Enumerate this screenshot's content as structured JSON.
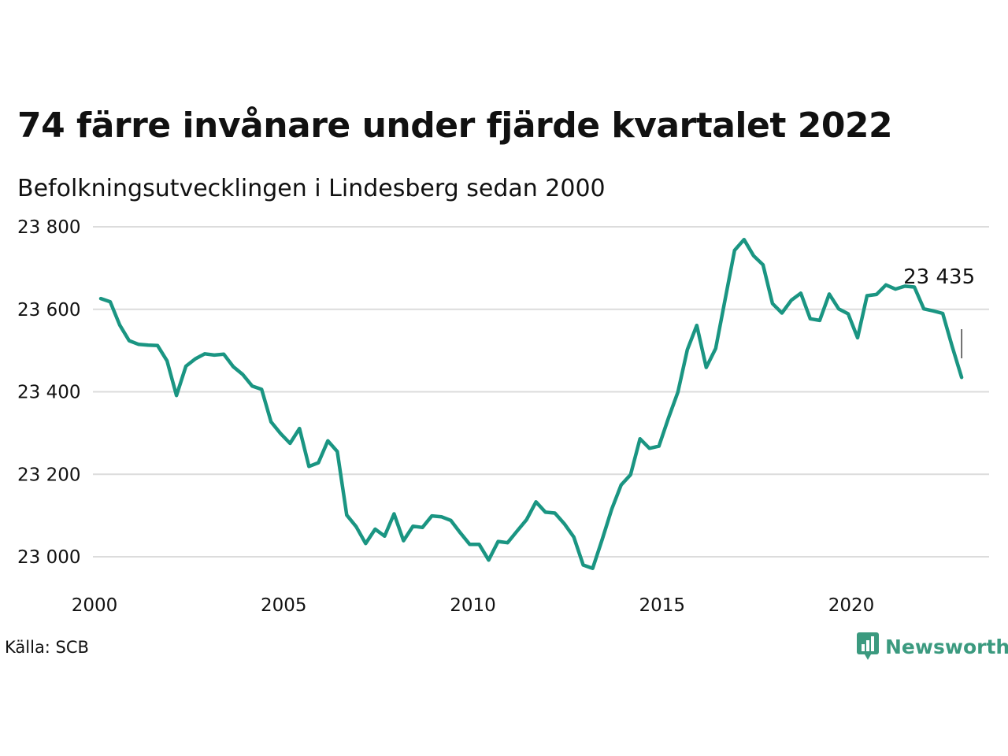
{
  "title": "74 färre invånare under fjärde kvartalet 2022",
  "subtitle": "Befolkningsutvecklingen i Lindesberg sedan 2000",
  "source": "Källa: SCB",
  "brand": {
    "name": "Newsworthy",
    "color": "#3b9a7f",
    "icon": "bar-chart-speech-bubble-icon"
  },
  "chart_data": {
    "type": "line",
    "title": "74 färre invånare under fjärde kvartalet 2022",
    "subtitle": "Befolkningsutvecklingen i Lindesberg sedan 2000",
    "xlabel": "",
    "ylabel": "",
    "xlim": [
      2000,
      2022.75
    ],
    "ylim": [
      22930,
      23820
    ],
    "y_ticks": [
      23000,
      23200,
      23400,
      23600,
      23800
    ],
    "y_tick_labels": [
      "23 000",
      "23 200",
      "23 400",
      "23 600",
      "23 800"
    ],
    "x_ticks": [
      2000,
      2005,
      2010,
      2015,
      2020
    ],
    "x_tick_labels": [
      "2000",
      "2005",
      "2010",
      "2015",
      "2020"
    ],
    "grid": "horizontal",
    "line_color": "#1a9582",
    "series": [
      {
        "x_start": 2000.0,
        "x_step": 0.25,
        "values": [
          23626,
          23618,
          23562,
          23524,
          23515,
          23513,
          23512,
          23475,
          23391,
          23462,
          23480,
          23492,
          23489,
          23491,
          23461,
          23442,
          23414,
          23406,
          23327,
          23299,
          23275,
          23311,
          23219,
          23228,
          23281,
          23255,
          23101,
          23073,
          23032,
          23067,
          23050,
          23104,
          23039,
          23074,
          23071,
          23099,
          23097,
          23088,
          23058,
          23030,
          23030,
          22992,
          23037,
          23034,
          23062,
          23090,
          23133,
          23108,
          23106,
          23080,
          23048,
          22980,
          22972,
          23042,
          23115,
          23174,
          23199,
          23286,
          23263,
          23268,
          23336,
          23399,
          23502,
          23561,
          23459,
          23505,
          23624,
          23743,
          23769,
          23730,
          23708,
          23614,
          23591,
          23622,
          23639,
          23577,
          23573,
          23637,
          23601,
          23589,
          23531,
          23633,
          23636,
          23659,
          23649,
          23656,
          23654,
          23601,
          23596,
          23590,
          23510,
          23435
        ]
      }
    ],
    "annotations": [
      {
        "text": "23 435",
        "at": "last-point"
      }
    ]
  }
}
